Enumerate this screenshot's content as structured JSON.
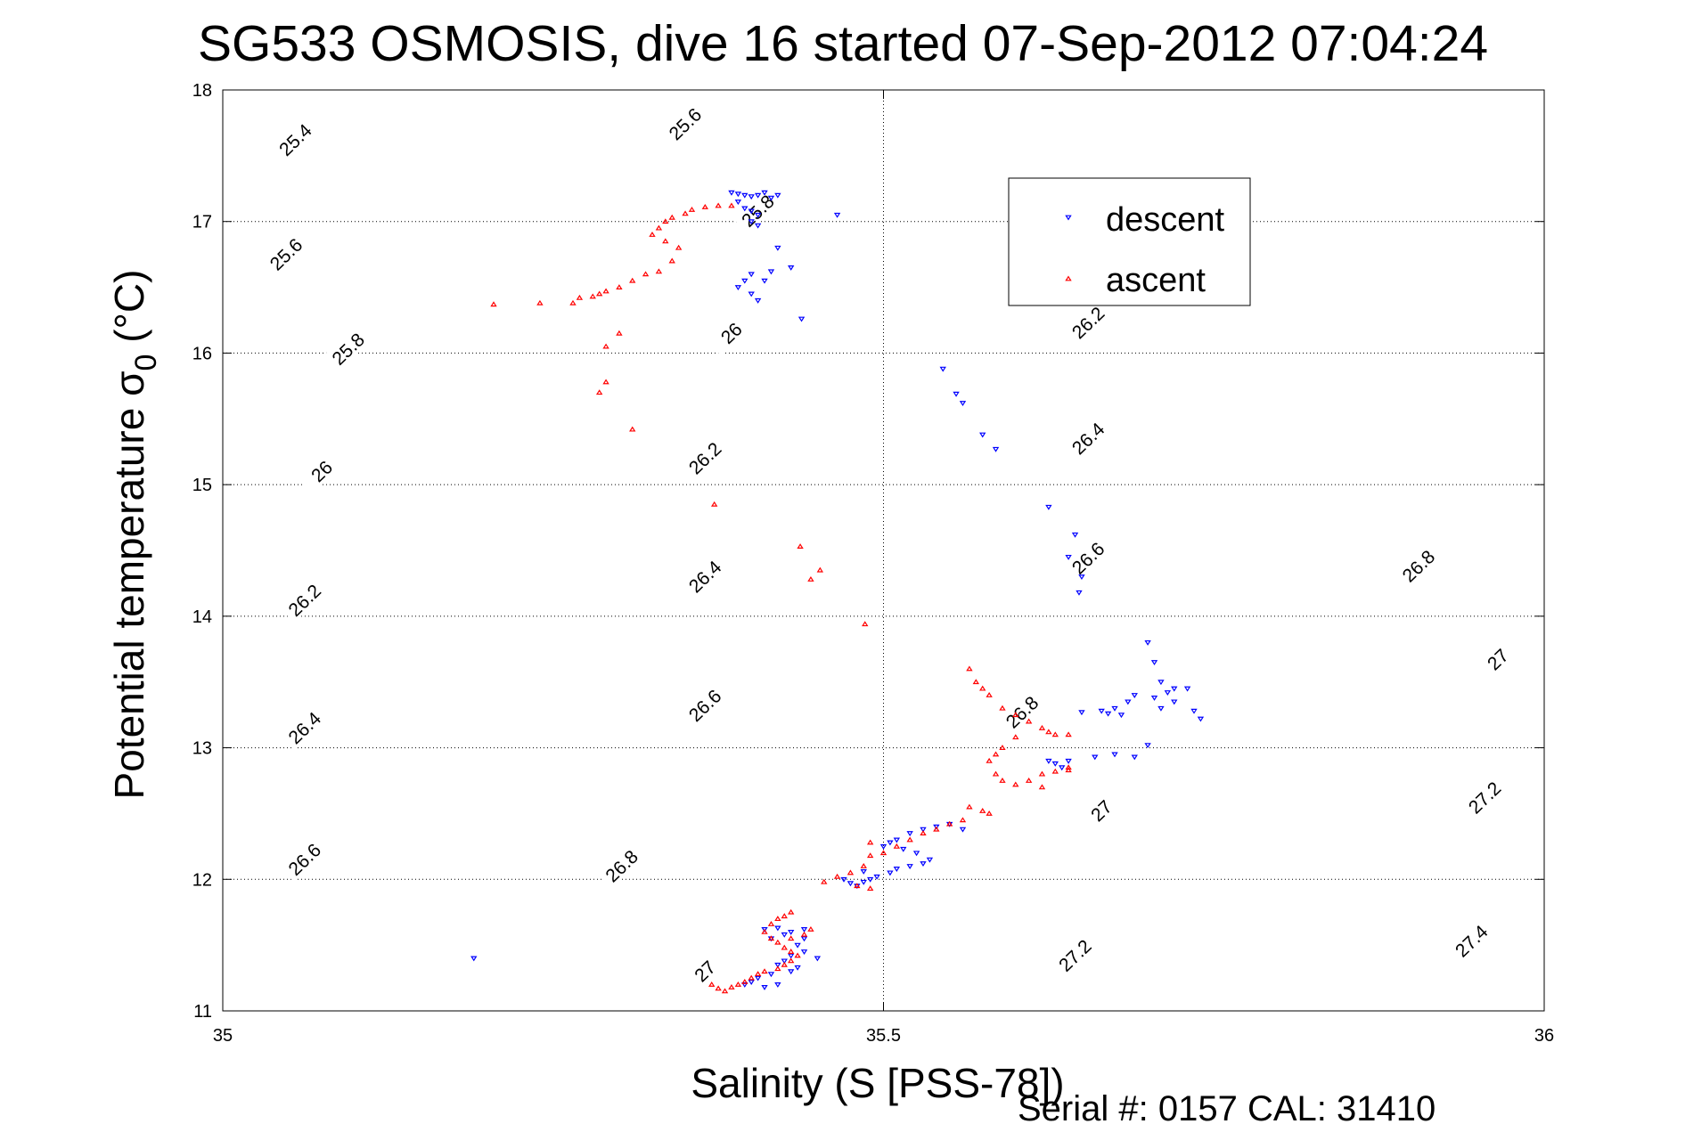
{
  "chart_data": {
    "type": "scatter",
    "title": "SG533 OSMOSIS, dive 16 started 07-Sep-2012 07:04:24",
    "xlabel": "Salinity (S [PSS-78])",
    "ylabel_main": "Potential temperature σ",
    "ylabel_sub": "0",
    "ylabel_unit": " (°C)",
    "footer": "Serial #: 0157  CAL: 31410",
    "xlim": [
      35,
      36
    ],
    "ylim": [
      11,
      18
    ],
    "xticks": [
      35,
      35.5,
      36
    ],
    "xtick_labels": [
      "35",
      "35.5",
      "36"
    ],
    "yticks": [
      11,
      12,
      13,
      14,
      15,
      16,
      17,
      18
    ],
    "ytick_labels": [
      "11",
      "12",
      "13",
      "14",
      "15",
      "16",
      "17",
      "18"
    ],
    "grid": true,
    "legend_position": "upper-right",
    "contour_levels": [
      25.4,
      25.6,
      25.8,
      26,
      26.2,
      26.4,
      26.6,
      26.8,
      27,
      27.2,
      27.4
    ],
    "contour_labels": [
      {
        "text": "25.4",
        "x": 35.055,
        "y": 17.62
      },
      {
        "text": "25.6",
        "x": 35.35,
        "y": 17.74
      },
      {
        "text": "25.6",
        "x": 35.048,
        "y": 16.75
      },
      {
        "text": "25.8",
        "x": 35.405,
        "y": 17.08
      },
      {
        "text": "25.8",
        "x": 35.095,
        "y": 16.03
      },
      {
        "text": "26",
        "x": 35.385,
        "y": 16.15
      },
      {
        "text": "26",
        "x": 35.075,
        "y": 15.1
      },
      {
        "text": "26.2",
        "x": 35.655,
        "y": 16.23
      },
      {
        "text": "26.2",
        "x": 35.365,
        "y": 15.2
      },
      {
        "text": "26.2",
        "x": 35.062,
        "y": 14.12
      },
      {
        "text": "26.4",
        "x": 35.655,
        "y": 15.35
      },
      {
        "text": "26.4",
        "x": 35.365,
        "y": 14.3
      },
      {
        "text": "26.4",
        "x": 35.062,
        "y": 13.15
      },
      {
        "text": "26.6",
        "x": 35.655,
        "y": 14.44
      },
      {
        "text": "26.6",
        "x": 35.365,
        "y": 13.32
      },
      {
        "text": "26.6",
        "x": 35.062,
        "y": 12.15
      },
      {
        "text": "26.8",
        "x": 35.905,
        "y": 14.38
      },
      {
        "text": "26.8",
        "x": 35.605,
        "y": 13.27
      },
      {
        "text": "26.8",
        "x": 35.302,
        "y": 12.1
      },
      {
        "text": "27",
        "x": 35.965,
        "y": 13.67
      },
      {
        "text": "27",
        "x": 35.665,
        "y": 12.52
      },
      {
        "text": "27",
        "x": 35.365,
        "y": 11.3
      },
      {
        "text": "27.2",
        "x": 35.955,
        "y": 12.62
      },
      {
        "text": "27.2",
        "x": 35.645,
        "y": 11.42
      },
      {
        "text": "27.4",
        "x": 35.945,
        "y": 11.53
      }
    ],
    "legend": [
      {
        "label": "descent",
        "color": "#0000ff",
        "marker": "down-triangle"
      },
      {
        "label": "ascent",
        "color": "#ff0000",
        "marker": "up-triangle"
      }
    ],
    "series": [
      {
        "name": "descent",
        "color": "#0000ff",
        "marker": "down-triangle",
        "points": [
          [
            35.385,
            17.22
          ],
          [
            35.39,
            17.21
          ],
          [
            35.395,
            17.2
          ],
          [
            35.4,
            17.19
          ],
          [
            35.405,
            17.2
          ],
          [
            35.41,
            17.22
          ],
          [
            35.415,
            17.18
          ],
          [
            35.42,
            17.2
          ],
          [
            35.39,
            17.15
          ],
          [
            35.395,
            17.1
          ],
          [
            35.4,
            17.08
          ],
          [
            35.405,
            17.05
          ],
          [
            35.4,
            17.0
          ],
          [
            35.405,
            16.97
          ],
          [
            35.465,
            17.05
          ],
          [
            35.42,
            16.8
          ],
          [
            35.4,
            16.6
          ],
          [
            35.395,
            16.55
          ],
          [
            35.39,
            16.5
          ],
          [
            35.4,
            16.45
          ],
          [
            35.405,
            16.4
          ],
          [
            35.41,
            16.55
          ],
          [
            35.415,
            16.62
          ],
          [
            35.43,
            16.65
          ],
          [
            35.438,
            16.26
          ],
          [
            35.545,
            15.88
          ],
          [
            35.555,
            15.69
          ],
          [
            35.56,
            15.62
          ],
          [
            35.575,
            15.38
          ],
          [
            35.585,
            15.27
          ],
          [
            35.625,
            14.83
          ],
          [
            35.645,
            14.62
          ],
          [
            35.64,
            14.45
          ],
          [
            35.65,
            14.3
          ],
          [
            35.648,
            14.18
          ],
          [
            35.7,
            13.8
          ],
          [
            35.705,
            13.65
          ],
          [
            35.71,
            13.5
          ],
          [
            35.72,
            13.45
          ],
          [
            35.715,
            13.42
          ],
          [
            35.705,
            13.38
          ],
          [
            35.71,
            13.3
          ],
          [
            35.72,
            13.35
          ],
          [
            35.73,
            13.45
          ],
          [
            35.735,
            13.28
          ],
          [
            35.74,
            13.22
          ],
          [
            35.69,
            13.4
          ],
          [
            35.685,
            13.35
          ],
          [
            35.675,
            13.3
          ],
          [
            35.665,
            13.28
          ],
          [
            35.67,
            13.26
          ],
          [
            35.68,
            13.25
          ],
          [
            35.65,
            13.27
          ],
          [
            35.7,
            13.02
          ],
          [
            35.69,
            12.93
          ],
          [
            35.675,
            12.95
          ],
          [
            35.66,
            12.93
          ],
          [
            35.64,
            12.9
          ],
          [
            35.625,
            12.9
          ],
          [
            35.63,
            12.88
          ],
          [
            35.635,
            12.85
          ],
          [
            35.53,
            12.38
          ],
          [
            35.54,
            12.4
          ],
          [
            35.55,
            12.42
          ],
          [
            35.56,
            12.38
          ],
          [
            35.52,
            12.35
          ],
          [
            35.51,
            12.3
          ],
          [
            35.505,
            12.28
          ],
          [
            35.5,
            12.25
          ],
          [
            35.515,
            12.23
          ],
          [
            35.525,
            12.2
          ],
          [
            35.535,
            12.15
          ],
          [
            35.53,
            12.12
          ],
          [
            35.52,
            12.1
          ],
          [
            35.51,
            12.08
          ],
          [
            35.505,
            12.05
          ],
          [
            35.495,
            12.02
          ],
          [
            35.49,
            12.0
          ],
          [
            35.485,
            11.98
          ],
          [
            35.48,
            11.95
          ],
          [
            35.475,
            11.97
          ],
          [
            35.47,
            12.0
          ],
          [
            35.485,
            12.06
          ],
          [
            35.41,
            11.62
          ],
          [
            35.42,
            11.63
          ],
          [
            35.43,
            11.6
          ],
          [
            35.44,
            11.62
          ],
          [
            35.425,
            11.58
          ],
          [
            35.415,
            11.55
          ],
          [
            35.435,
            11.5
          ],
          [
            35.44,
            11.45
          ],
          [
            35.43,
            11.42
          ],
          [
            35.425,
            11.38
          ],
          [
            35.42,
            11.35
          ],
          [
            35.435,
            11.33
          ],
          [
            35.43,
            11.3
          ],
          [
            35.415,
            11.28
          ],
          [
            35.405,
            11.25
          ],
          [
            35.4,
            11.22
          ],
          [
            35.395,
            11.2
          ],
          [
            35.41,
            11.18
          ],
          [
            35.42,
            11.2
          ],
          [
            35.45,
            11.4
          ],
          [
            35.44,
            11.55
          ],
          [
            35.19,
            11.4
          ]
        ]
      },
      {
        "name": "ascent",
        "color": "#ff0000",
        "marker": "up-triangle",
        "points": [
          [
            35.385,
            17.12
          ],
          [
            35.375,
            17.12
          ],
          [
            35.365,
            17.11
          ],
          [
            35.355,
            17.09
          ],
          [
            35.35,
            17.06
          ],
          [
            35.34,
            17.03
          ],
          [
            35.335,
            17.0
          ],
          [
            35.33,
            16.95
          ],
          [
            35.325,
            16.9
          ],
          [
            35.335,
            16.85
          ],
          [
            35.345,
            16.8
          ],
          [
            35.34,
            16.7
          ],
          [
            35.33,
            16.62
          ],
          [
            35.32,
            16.6
          ],
          [
            35.31,
            16.55
          ],
          [
            35.3,
            16.5
          ],
          [
            35.29,
            16.47
          ],
          [
            35.285,
            16.45
          ],
          [
            35.28,
            16.43
          ],
          [
            35.27,
            16.42
          ],
          [
            35.265,
            16.38
          ],
          [
            35.24,
            16.38
          ],
          [
            35.205,
            16.37
          ],
          [
            35.29,
            16.05
          ],
          [
            35.3,
            16.15
          ],
          [
            35.285,
            15.7
          ],
          [
            35.29,
            15.78
          ],
          [
            35.31,
            15.42
          ],
          [
            35.372,
            14.85
          ],
          [
            35.437,
            14.53
          ],
          [
            35.445,
            14.28
          ],
          [
            35.452,
            14.35
          ],
          [
            35.486,
            13.94
          ],
          [
            35.565,
            13.6
          ],
          [
            35.57,
            13.5
          ],
          [
            35.575,
            13.45
          ],
          [
            35.58,
            13.4
          ],
          [
            35.59,
            13.3
          ],
          [
            35.6,
            13.25
          ],
          [
            35.61,
            13.2
          ],
          [
            35.62,
            13.15
          ],
          [
            35.625,
            13.12
          ],
          [
            35.63,
            13.1
          ],
          [
            35.64,
            13.1
          ],
          [
            35.6,
            13.08
          ],
          [
            35.59,
            13.0
          ],
          [
            35.585,
            12.95
          ],
          [
            35.58,
            12.9
          ],
          [
            35.585,
            12.8
          ],
          [
            35.59,
            12.75
          ],
          [
            35.6,
            12.72
          ],
          [
            35.61,
            12.75
          ],
          [
            35.62,
            12.8
          ],
          [
            35.63,
            12.82
          ],
          [
            35.64,
            12.85
          ],
          [
            35.64,
            12.83
          ],
          [
            35.62,
            12.7
          ],
          [
            35.565,
            12.55
          ],
          [
            35.575,
            12.52
          ],
          [
            35.58,
            12.5
          ],
          [
            35.56,
            12.45
          ],
          [
            35.55,
            12.42
          ],
          [
            35.54,
            12.38
          ],
          [
            35.53,
            12.35
          ],
          [
            35.52,
            12.3
          ],
          [
            35.51,
            12.25
          ],
          [
            35.5,
            12.2
          ],
          [
            35.49,
            12.18
          ],
          [
            35.485,
            12.1
          ],
          [
            35.475,
            12.05
          ],
          [
            35.465,
            12.02
          ],
          [
            35.455,
            11.98
          ],
          [
            35.48,
            11.95
          ],
          [
            35.49,
            12.28
          ],
          [
            35.49,
            11.93
          ],
          [
            35.43,
            11.75
          ],
          [
            35.425,
            11.72
          ],
          [
            35.42,
            11.7
          ],
          [
            35.415,
            11.66
          ],
          [
            35.41,
            11.6
          ],
          [
            35.415,
            11.55
          ],
          [
            35.42,
            11.52
          ],
          [
            35.425,
            11.48
          ],
          [
            35.43,
            11.45
          ],
          [
            35.435,
            11.42
          ],
          [
            35.43,
            11.38
          ],
          [
            35.425,
            11.35
          ],
          [
            35.42,
            11.32
          ],
          [
            35.41,
            11.3
          ],
          [
            35.405,
            11.28
          ],
          [
            35.4,
            11.25
          ],
          [
            35.395,
            11.22
          ],
          [
            35.39,
            11.2
          ],
          [
            35.385,
            11.18
          ],
          [
            35.38,
            11.15
          ],
          [
            35.375,
            11.17
          ],
          [
            35.37,
            11.2
          ],
          [
            35.44,
            11.58
          ],
          [
            35.445,
            11.62
          ],
          [
            35.43,
            11.55
          ]
        ]
      }
    ]
  }
}
